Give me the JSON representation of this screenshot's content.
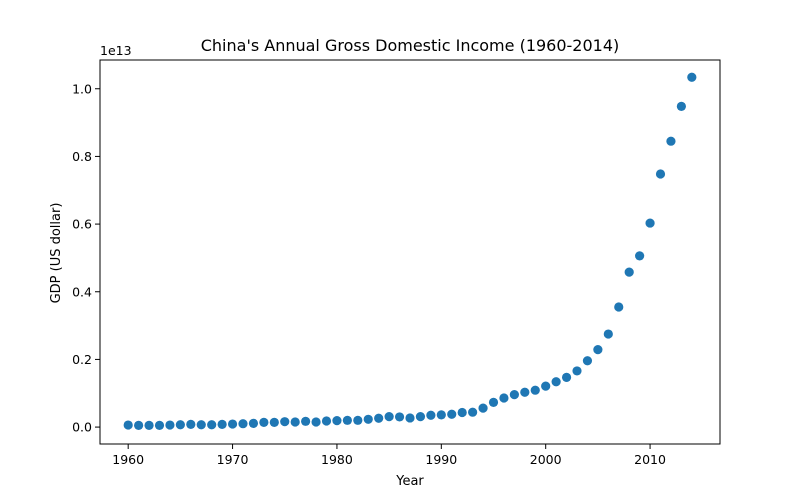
{
  "chart_data": {
    "type": "scatter",
    "title": "China's Annual Gross Domestic Income (1960-2014)",
    "xlabel": "Year",
    "ylabel": "GDP (US dollar)",
    "y_offset_label": "1e13",
    "y_scale": 10000000000000.0,
    "xlim": [
      1957.3,
      2016.7
    ],
    "ylim": [
      -0.05,
      1.085
    ],
    "x_ticks": [
      1960,
      1970,
      1980,
      1990,
      2000,
      2010
    ],
    "y_ticks": [
      0.0,
      0.2,
      0.4,
      0.6,
      0.8,
      1.0
    ],
    "y_tick_labels": [
      "0.0",
      "0.2",
      "0.4",
      "0.6",
      "0.8",
      "1.0"
    ],
    "marker_color": "#1f77b4",
    "grid": false,
    "x": [
      1960,
      1961,
      1962,
      1963,
      1964,
      1965,
      1966,
      1967,
      1968,
      1969,
      1970,
      1971,
      1972,
      1973,
      1974,
      1975,
      1976,
      1977,
      1978,
      1979,
      1980,
      1981,
      1982,
      1983,
      1984,
      1985,
      1986,
      1987,
      1988,
      1989,
      1990,
      1991,
      1992,
      1993,
      1994,
      1995,
      1996,
      1997,
      1998,
      1999,
      2000,
      2001,
      2002,
      2003,
      2004,
      2005,
      2006,
      2007,
      2008,
      2009,
      2010,
      2011,
      2012,
      2013,
      2014
    ],
    "y": [
      0.006,
      0.005,
      0.005,
      0.005,
      0.006,
      0.007,
      0.008,
      0.007,
      0.007,
      0.008,
      0.009,
      0.01,
      0.011,
      0.014,
      0.014,
      0.016,
      0.015,
      0.017,
      0.015,
      0.018,
      0.019,
      0.02,
      0.02,
      0.023,
      0.026,
      0.031,
      0.03,
      0.027,
      0.031,
      0.035,
      0.036,
      0.038,
      0.043,
      0.044,
      0.056,
      0.073,
      0.086,
      0.096,
      0.103,
      0.109,
      0.121,
      0.134,
      0.147,
      0.166,
      0.196,
      0.229,
      0.275,
      0.355,
      0.458,
      0.506,
      0.603,
      0.748,
      0.845,
      0.948,
      1.034
    ]
  }
}
